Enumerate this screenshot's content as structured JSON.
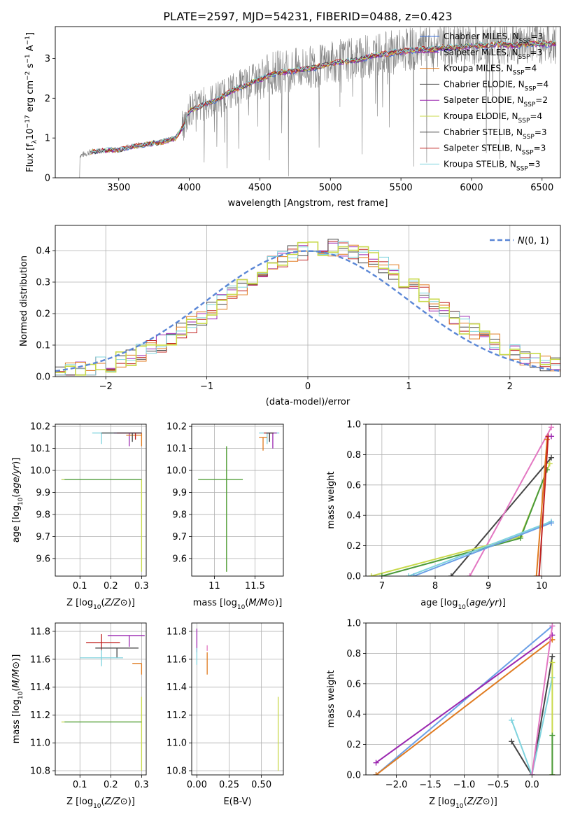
{
  "figure": {
    "title": "PLATE=2597, MJD=54231, FIBERID=0488, z=0.423"
  },
  "legend_models": [
    {
      "label": "Chabrier MILES, N",
      "sub": "SSP",
      "suffix": "=3",
      "color": "#3a6fd8"
    },
    {
      "label": "Salpeter MILES, N",
      "sub": "SSP",
      "suffix": "=3",
      "color": "#9b27b0"
    },
    {
      "label": "Kroupa MILES, N",
      "sub": "SSP",
      "suffix": "=4",
      "color": "#e07b20"
    },
    {
      "label": "Chabrier ELODIE, N",
      "sub": "SSP",
      "suffix": "=4",
      "color": "#5a5a5a"
    },
    {
      "label": "Salpeter ELODIE, N",
      "sub": "SSP",
      "suffix": "=2",
      "color": "#9b27b0"
    },
    {
      "label": "Kroupa ELODIE, N",
      "sub": "SSP",
      "suffix": "=4",
      "color": "#c8d94a"
    },
    {
      "label": "Chabrier STELIB, N",
      "sub": "SSP",
      "suffix": "=3",
      "color": "#444444"
    },
    {
      "label": "Salpeter STELIB, N",
      "sub": "SSP",
      "suffix": "=3",
      "color": "#c0201e"
    },
    {
      "label": "Kroupa STELIB, N",
      "sub": "SSP",
      "suffix": "=3",
      "color": "#7fd3de"
    }
  ],
  "chart_data": [
    {
      "id": "spectrum",
      "type": "line",
      "xlabel": "wavelength [Angstrom, rest frame]",
      "ylabel_parts": [
        "Flux [f",
        "λ",
        "10",
        "−17",
        " erg cm",
        "−2",
        " s",
        "−1",
        " A",
        "−1",
        "]"
      ],
      "xlim": [
        3050,
        6630
      ],
      "ylim": [
        0,
        3.8
      ],
      "xticks": [
        3500,
        4000,
        4500,
        5000,
        5500,
        6000,
        6500
      ],
      "yticks": [
        0,
        1,
        2,
        3
      ],
      "data_range": [
        3220,
        6600
      ],
      "observed_color": "#808080",
      "model_trend": {
        "x": [
          3220,
          3300,
          3400,
          3500,
          3600,
          3700,
          3800,
          3900,
          3960,
          4000,
          4100,
          4200,
          4300,
          4400,
          4500,
          4600,
          4700,
          4800,
          4900,
          5000,
          5100,
          5200,
          5300,
          5400,
          5500,
          5600,
          5700,
          5800,
          5900,
          6000,
          6100,
          6200,
          6300,
          6400,
          6500,
          6600
        ],
        "y": [
          0.55,
          0.65,
          0.7,
          0.7,
          0.8,
          0.85,
          0.9,
          1.0,
          1.3,
          1.7,
          1.85,
          2.0,
          2.2,
          2.35,
          2.5,
          2.65,
          2.7,
          2.75,
          2.8,
          2.9,
          2.95,
          3.0,
          3.1,
          3.15,
          3.2,
          3.25,
          3.25,
          3.3,
          3.3,
          3.35,
          3.35,
          3.4,
          3.35,
          3.4,
          3.4,
          3.4
        ]
      },
      "series_colors": [
        "#3a6fd8",
        "#9b27b0",
        "#e07b20",
        "#5a5a5a",
        "#9b27b0",
        "#c8d94a",
        "#444444",
        "#c0201e",
        "#7fd3de"
      ]
    },
    {
      "id": "residuals",
      "type": "line",
      "xlabel": "(data-model)/error",
      "ylabel": "Normed distribution",
      "xlim": [
        -2.5,
        2.5
      ],
      "ylim": [
        0,
        0.48
      ],
      "xticks": [
        -2,
        -1,
        0,
        1,
        2
      ],
      "yticks": [
        0.0,
        0.1,
        0.2,
        0.3,
        0.4
      ],
      "ytick_labels": [
        "0.0",
        "0.1",
        "0.2",
        "0.3",
        "0.4"
      ],
      "xtick_labels": [
        "−2",
        "−1",
        "0",
        "1",
        "2"
      ],
      "legend": "N(0,1)",
      "gaussian_color": "#5b87d6",
      "hist_colors": [
        "#9b27b0",
        "#c0201e",
        "#444444",
        "#e07b20",
        "#7fd3de",
        "#c8d94a"
      ],
      "bin_width": 0.1
    },
    {
      "id": "age_vs_Z",
      "type": "scatter",
      "xlabel": "Z [log10(Z/Z⊙)]",
      "ylabel": "age  [log10(age/yr)]",
      "xlim": [
        0.02,
        0.315
      ],
      "ylim": [
        9.52,
        10.21
      ],
      "xticks": [
        0.1,
        0.2,
        0.3
      ],
      "yticks": [
        9.6,
        9.7,
        9.8,
        9.9,
        10.0,
        10.1,
        10.2
      ],
      "errorbars": [
        {
          "x": 0.17,
          "y": 9.96,
          "xerr": [
            0.13,
            0.13
          ],
          "yerr": [
            0,
            0
          ],
          "color": "#6aa0e6"
        },
        {
          "x": 0.3,
          "y": 9.96,
          "xerr": [
            0.26,
            0.0
          ],
          "yerr": [
            0.42,
            0.0
          ],
          "color": "#c8d94a"
        },
        {
          "x": 0.3,
          "y": 9.96,
          "xerr": [
            0.25,
            0.0
          ],
          "yerr": [
            0,
            0
          ],
          "color": "#4a9a3a"
        },
        {
          "x": 0.17,
          "y": 10.17,
          "xerr": [
            0.03,
            0.11
          ],
          "yerr": [
            0.05,
            0.0
          ],
          "color": "#7fd3de"
        },
        {
          "x": 0.26,
          "y": 10.17,
          "xerr": [
            0.05,
            0.04
          ],
          "yerr": [
            0.06,
            0.0
          ],
          "color": "#9b27b0"
        },
        {
          "x": 0.3,
          "y": 10.16,
          "xerr": [
            0.05,
            0.0
          ],
          "yerr": [
            0.05,
            0.01
          ],
          "color": "#e07b20"
        },
        {
          "x": 0.28,
          "y": 10.17,
          "xerr": [
            0.06,
            0.02
          ],
          "yerr": [
            0.03,
            0.0
          ],
          "color": "#c0201e"
        },
        {
          "x": 0.27,
          "y": 10.17,
          "xerr": [
            0.1,
            0.03
          ],
          "yerr": [
            0.04,
            0.0
          ],
          "color": "#444444"
        }
      ]
    },
    {
      "id": "age_vs_mass",
      "type": "scatter",
      "xlabel": "mass [log10(M/M⊙)]",
      "ylabel": "",
      "xlim": [
        10.72,
        11.85
      ],
      "ylim": [
        9.52,
        10.21
      ],
      "xticks": [
        11.0,
        11.5
      ],
      "yticks": [
        9.6,
        9.7,
        9.8,
        9.9,
        10.0,
        10.1,
        10.2
      ],
      "errorbars": [
        {
          "x": 11.15,
          "y": 9.96,
          "xerr": [
            0.35,
            0.2
          ],
          "yerr": [
            0.42,
            0.15
          ],
          "color": "#c8d94a"
        },
        {
          "x": 11.15,
          "y": 9.96,
          "xerr": [
            0.35,
            0.2
          ],
          "yerr": [
            0.42,
            0.15
          ],
          "color": "#4a9a3a"
        },
        {
          "x": 11.65,
          "y": 10.17,
          "xerr": [
            0.1,
            0.15
          ],
          "yerr": [
            0.05,
            0.0
          ],
          "color": "#7fd3de"
        },
        {
          "x": 11.72,
          "y": 10.17,
          "xerr": [
            0.05,
            0.05
          ],
          "yerr": [
            0.07,
            0.0
          ],
          "color": "#9b27b0"
        },
        {
          "x": 11.6,
          "y": 10.15,
          "xerr": [
            0.05,
            0.05
          ],
          "yerr": [
            0.06,
            0.0
          ],
          "color": "#e07b20"
        },
        {
          "x": 11.68,
          "y": 10.17,
          "xerr": [
            0.07,
            0.05
          ],
          "yerr": [
            0.04,
            0.0
          ],
          "color": "#c0201e"
        },
        {
          "x": 11.68,
          "y": 10.17,
          "xerr": [
            0.04,
            0.05
          ],
          "yerr": [
            0.04,
            0.0
          ],
          "color": "#444444"
        }
      ]
    },
    {
      "id": "weight_vs_age",
      "type": "line",
      "xlabel": "age  [log10(age/yr)]",
      "ylabel": "mass weight",
      "xlim": [
        6.7,
        10.35
      ],
      "ylim": [
        0,
        1.0
      ],
      "xticks": [
        7,
        8,
        9,
        10
      ],
      "yticks": [
        0.0,
        0.2,
        0.4,
        0.6,
        0.8,
        1.0
      ],
      "ytick_labels": [
        "0.0",
        "0.2",
        "0.4",
        "0.6",
        "0.8",
        "1.0"
      ],
      "series": [
        {
          "color": "#444444",
          "x": [
            8.3,
            10.18
          ],
          "y": [
            0.0,
            0.78
          ]
        },
        {
          "color": "#e377c2",
          "x": [
            8.65,
            10.18
          ],
          "y": [
            0.0,
            0.98
          ]
        },
        {
          "color": "#c8d94a",
          "x": [
            6.8,
            9.6,
            10.15
          ],
          "y": [
            0.0,
            0.26,
            0.74
          ]
        },
        {
          "color": "#4a9a3a",
          "x": [
            7.0,
            9.6,
            10.1
          ],
          "y": [
            0.0,
            0.25,
            0.7
          ]
        },
        {
          "color": "#7fd3de",
          "x": [
            7.5,
            10.18
          ],
          "y": [
            0.0,
            0.36
          ]
        },
        {
          "color": "#6aa0e6",
          "x": [
            7.6,
            10.18
          ],
          "y": [
            0.0,
            0.35
          ]
        },
        {
          "color": "#e07b20",
          "x": [
            9.9,
            10.1
          ],
          "y": [
            0.0,
            0.9
          ]
        },
        {
          "color": "#c0201e",
          "x": [
            9.95,
            10.12
          ],
          "y": [
            0.0,
            0.92
          ]
        },
        {
          "color": "#9b27b0",
          "x": [
            10.18
          ],
          "y": [
            0.92
          ]
        }
      ]
    },
    {
      "id": "mass_vs_Z",
      "type": "scatter",
      "xlabel": "Z [log10(Z/Z⊙)]",
      "ylabel": "mass [log10(M/M⊙)]",
      "xlim": [
        0.02,
        0.315
      ],
      "ylim": [
        10.77,
        11.86
      ],
      "xticks": [
        0.1,
        0.2,
        0.3
      ],
      "yticks": [
        10.8,
        11.0,
        11.2,
        11.4,
        11.6,
        11.8
      ],
      "errorbars": [
        {
          "x": 0.3,
          "y": 11.15,
          "xerr": [
            0.26,
            0.0
          ],
          "yerr": [
            0.35,
            0.18
          ],
          "color": "#c8d94a"
        },
        {
          "x": 0.3,
          "y": 11.15,
          "xerr": [
            0.25,
            0.0
          ],
          "yerr": [
            0,
            0
          ],
          "color": "#4a9a3a"
        },
        {
          "x": 0.17,
          "y": 11.72,
          "xerr": [
            0.05,
            0.06
          ],
          "yerr": [
            0.06,
            0.06
          ],
          "color": "#c0201e"
        },
        {
          "x": 0.26,
          "y": 11.77,
          "xerr": [
            0.07,
            0.05
          ],
          "yerr": [
            0.08,
            0.0
          ],
          "color": "#9b27b0"
        },
        {
          "x": 0.22,
          "y": 11.68,
          "xerr": [
            0.07,
            0.07
          ],
          "yerr": [
            0.07,
            0.0
          ],
          "color": "#444444"
        },
        {
          "x": 0.17,
          "y": 11.61,
          "xerr": [
            0.07,
            0.07
          ],
          "yerr": [
            0.06,
            0.06
          ],
          "color": "#7fd3de"
        },
        {
          "x": 0.3,
          "y": 11.57,
          "xerr": [
            0.03,
            0.0
          ],
          "yerr": [
            0.08,
            0.0
          ],
          "color": "#e07b20"
        }
      ]
    },
    {
      "id": "mass_vs_ebv",
      "type": "scatter",
      "xlabel": "E(B-V)",
      "ylabel": "",
      "xlim": [
        -0.04,
        0.67
      ],
      "ylim": [
        10.77,
        11.86
      ],
      "xticks": [
        0.0,
        0.25,
        0.5
      ],
      "xtick_labels": [
        "0.00",
        "0.25",
        "0.50"
      ],
      "yticks": [
        10.8,
        11.0,
        11.2,
        11.4,
        11.6,
        11.8
      ],
      "errorbars": [
        {
          "x": 0.63,
          "y": 11.15,
          "xerr": [
            0,
            0
          ],
          "yerr": [
            0.35,
            0.18
          ],
          "color": "#c8d94a"
        },
        {
          "x": 0.0,
          "y": 11.77,
          "xerr": [
            0,
            0
          ],
          "yerr": [
            0.12,
            0.05
          ],
          "color": "#9b27b0"
        },
        {
          "x": 0.0,
          "y": 11.62,
          "xerr": [
            0,
            0
          ],
          "yerr": [
            0.06,
            0.06
          ],
          "color": "#7fd3de"
        },
        {
          "x": 0.08,
          "y": 11.57,
          "xerr": [
            0,
            0
          ],
          "yerr": [
            0.08,
            0.08
          ],
          "color": "#e07b20"
        },
        {
          "x": 0.08,
          "y": 11.7,
          "xerr": [
            0,
            0
          ],
          "yerr": [
            0.04,
            0.0
          ],
          "color": "#e377c2"
        }
      ]
    },
    {
      "id": "weight_vs_Z",
      "type": "line",
      "xlabel": "Z [log10(Z/Z⊙)]",
      "ylabel": "mass weight",
      "xlim": [
        -2.45,
        0.42
      ],
      "ylim": [
        0,
        1.0
      ],
      "xticks": [
        -2.0,
        -1.5,
        -1.0,
        -0.5,
        0.0
      ],
      "xtick_labels": [
        "−2.0",
        "−1.5",
        "−1.0",
        "−0.5",
        "0.0"
      ],
      "yticks": [
        0.0,
        0.2,
        0.4,
        0.6,
        0.8,
        1.0
      ],
      "ytick_labels": [
        "0.0",
        "0.2",
        "0.4",
        "0.6",
        "0.8",
        "1.0"
      ],
      "series": [
        {
          "color": "#6aa0e6",
          "x": [
            -2.3,
            0.3
          ],
          "y": [
            0.0,
            0.98
          ]
        },
        {
          "color": "#9b27b0",
          "x": [
            -2.3,
            0.3
          ],
          "y": [
            0.08,
            0.92
          ]
        },
        {
          "color": "#e07b20",
          "x": [
            -2.3,
            0.3
          ],
          "y": [
            0.0,
            0.89
          ]
        },
        {
          "color": "#444444",
          "x": [
            -0.3,
            0.0,
            0.3
          ],
          "y": [
            0.22,
            0.0,
            0.78
          ]
        },
        {
          "color": "#7fd3de",
          "x": [
            -0.3,
            0.0,
            0.3
          ],
          "y": [
            0.36,
            0.0,
            0.64
          ]
        },
        {
          "color": "#e377c2",
          "x": [
            0.0,
            0.3
          ],
          "y": [
            0.0,
            0.98
          ]
        },
        {
          "color": "#c8d94a",
          "x": [
            0.3,
            0.3
          ],
          "y": [
            0.0,
            0.74
          ]
        },
        {
          "color": "#4a9a3a",
          "x": [
            0.3,
            0.3
          ],
          "y": [
            0.0,
            0.26
          ]
        }
      ]
    }
  ]
}
